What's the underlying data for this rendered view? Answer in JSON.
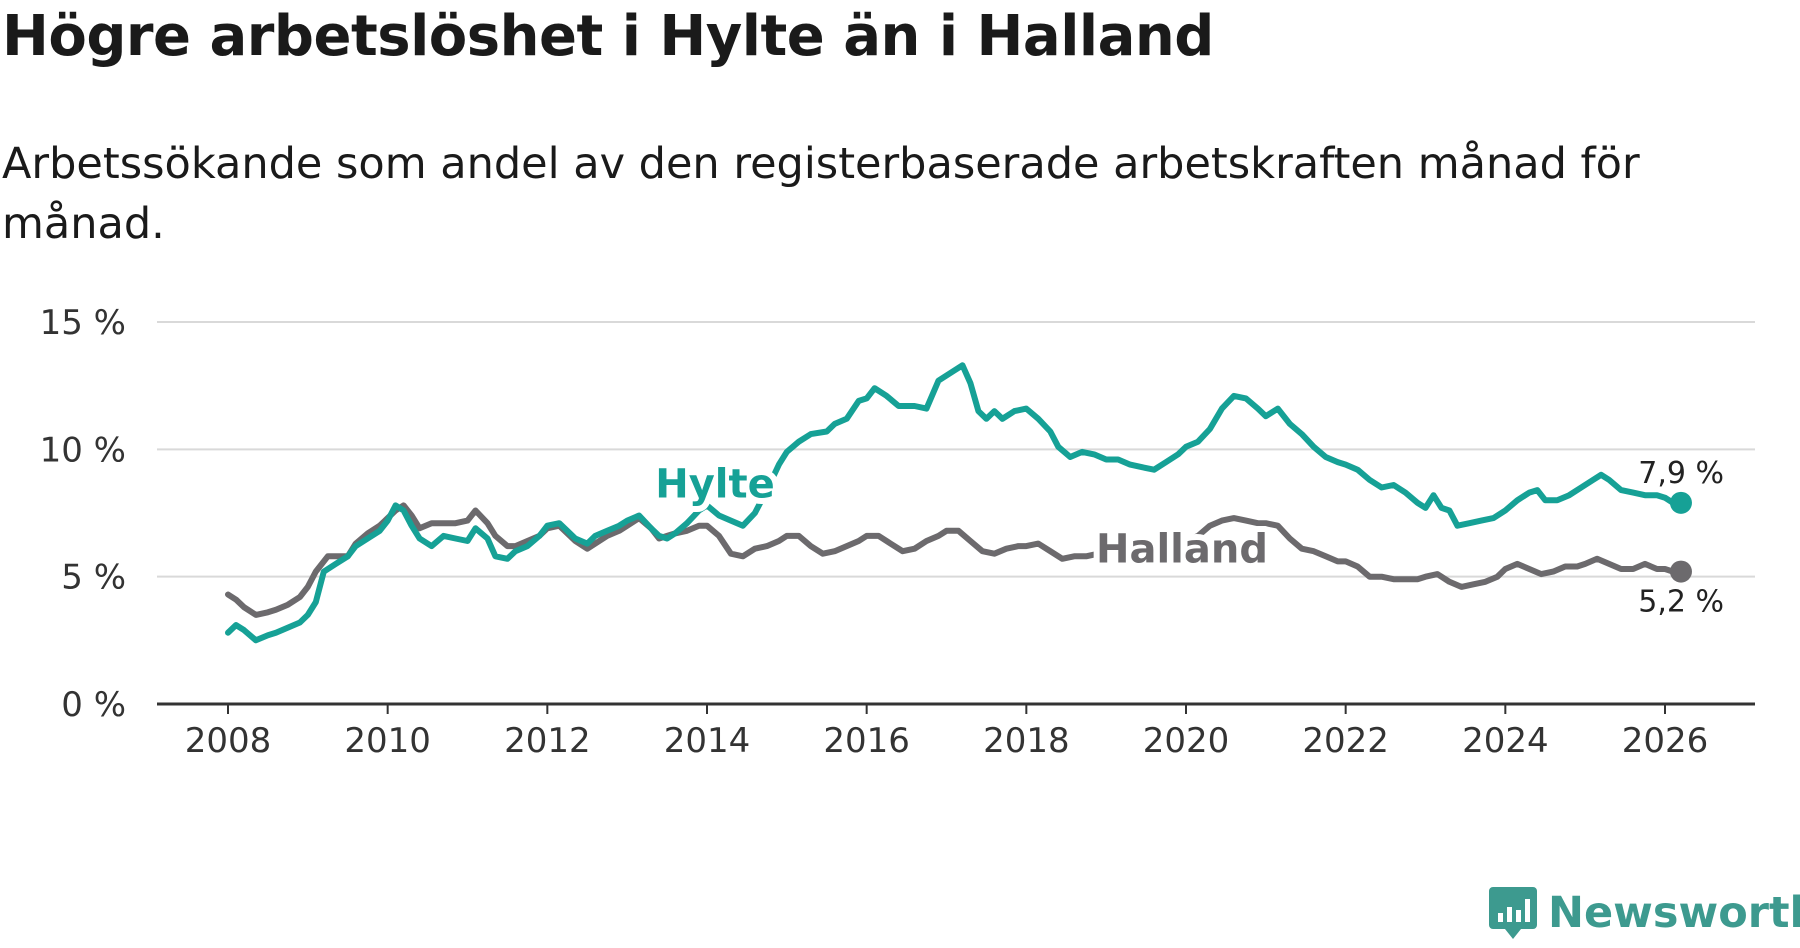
{
  "title": "Högre arbetslöshet i Hylte än i Halland",
  "subtitle": "Arbetssökande som andel av den registerbaserade arbetskraften månad för månad.",
  "brand": {
    "name": "Newsworthy",
    "color": "#3d9a8f",
    "icon": "bar-chart-badge-icon"
  },
  "chart_data": {
    "type": "line",
    "title": "Högre arbetslöshet i Hylte än i Halland",
    "xlabel": "",
    "ylabel": "",
    "xlim": [
      2007.2,
      2027.1
    ],
    "ylim": [
      0,
      15
    ],
    "grid": true,
    "y_ticks": [
      0,
      5,
      10,
      15
    ],
    "y_tick_labels": [
      "0 %",
      "5 %",
      "10 %",
      "15 %"
    ],
    "x_ticks": [
      2008,
      2010,
      2012,
      2014,
      2016,
      2018,
      2020,
      2022,
      2024,
      2026
    ],
    "x_tick_labels": [
      "2008",
      "2010",
      "2012",
      "2014",
      "2016",
      "2018",
      "2020",
      "2022",
      "2024",
      "2026"
    ],
    "series": [
      {
        "name": "Hylte",
        "color": "#16a196",
        "label": "Hylte",
        "end_label": "7,9 %",
        "points": [
          [
            2008.0,
            2.8
          ],
          [
            2008.1,
            3.1
          ],
          [
            2008.2,
            2.9
          ],
          [
            2008.35,
            2.5
          ],
          [
            2008.5,
            2.7
          ],
          [
            2008.6,
            2.8
          ],
          [
            2008.75,
            3.0
          ],
          [
            2008.9,
            3.2
          ],
          [
            2009.0,
            3.5
          ],
          [
            2009.1,
            4.0
          ],
          [
            2009.2,
            5.2
          ],
          [
            2009.35,
            5.5
          ],
          [
            2009.5,
            5.8
          ],
          [
            2009.6,
            6.2
          ],
          [
            2009.75,
            6.5
          ],
          [
            2009.9,
            6.8
          ],
          [
            2010.0,
            7.2
          ],
          [
            2010.1,
            7.8
          ],
          [
            2010.2,
            7.6
          ],
          [
            2010.3,
            7.0
          ],
          [
            2010.4,
            6.5
          ],
          [
            2010.55,
            6.2
          ],
          [
            2010.7,
            6.6
          ],
          [
            2010.85,
            6.5
          ],
          [
            2011.0,
            6.4
          ],
          [
            2011.1,
            6.9
          ],
          [
            2011.25,
            6.5
          ],
          [
            2011.35,
            5.8
          ],
          [
            2011.5,
            5.7
          ],
          [
            2011.6,
            6.0
          ],
          [
            2011.75,
            6.2
          ],
          [
            2011.9,
            6.6
          ],
          [
            2012.0,
            7.0
          ],
          [
            2012.15,
            7.1
          ],
          [
            2012.25,
            6.8
          ],
          [
            2012.35,
            6.5
          ],
          [
            2012.5,
            6.3
          ],
          [
            2012.6,
            6.6
          ],
          [
            2012.75,
            6.8
          ],
          [
            2012.9,
            7.0
          ],
          [
            2013.0,
            7.2
          ],
          [
            2013.15,
            7.4
          ],
          [
            2013.3,
            6.9
          ],
          [
            2013.4,
            6.6
          ],
          [
            2013.5,
            6.5
          ],
          [
            2013.6,
            6.7
          ],
          [
            2013.75,
            7.1
          ],
          [
            2013.9,
            7.6
          ],
          [
            2014.0,
            7.8
          ],
          [
            2014.15,
            7.4
          ],
          [
            2014.3,
            7.2
          ],
          [
            2014.45,
            7.0
          ],
          [
            2014.6,
            7.5
          ],
          [
            2014.75,
            8.4
          ],
          [
            2014.9,
            9.4
          ],
          [
            2015.0,
            9.9
          ],
          [
            2015.15,
            10.3
          ],
          [
            2015.3,
            10.6
          ],
          [
            2015.5,
            10.7
          ],
          [
            2015.6,
            11.0
          ],
          [
            2015.75,
            11.2
          ],
          [
            2015.9,
            11.9
          ],
          [
            2016.0,
            12.0
          ],
          [
            2016.1,
            12.4
          ],
          [
            2016.25,
            12.1
          ],
          [
            2016.4,
            11.7
          ],
          [
            2016.6,
            11.7
          ],
          [
            2016.75,
            11.6
          ],
          [
            2016.9,
            12.7
          ],
          [
            2017.0,
            12.9
          ],
          [
            2017.1,
            13.1
          ],
          [
            2017.2,
            13.3
          ],
          [
            2017.3,
            12.6
          ],
          [
            2017.4,
            11.5
          ],
          [
            2017.5,
            11.2
          ],
          [
            2017.6,
            11.5
          ],
          [
            2017.7,
            11.2
          ],
          [
            2017.85,
            11.5
          ],
          [
            2018.0,
            11.6
          ],
          [
            2018.15,
            11.2
          ],
          [
            2018.3,
            10.7
          ],
          [
            2018.4,
            10.1
          ],
          [
            2018.55,
            9.7
          ],
          [
            2018.7,
            9.9
          ],
          [
            2018.85,
            9.8
          ],
          [
            2019.0,
            9.6
          ],
          [
            2019.15,
            9.6
          ],
          [
            2019.3,
            9.4
          ],
          [
            2019.45,
            9.3
          ],
          [
            2019.6,
            9.2
          ],
          [
            2019.75,
            9.5
          ],
          [
            2019.9,
            9.8
          ],
          [
            2020.0,
            10.1
          ],
          [
            2020.15,
            10.3
          ],
          [
            2020.3,
            10.8
          ],
          [
            2020.45,
            11.6
          ],
          [
            2020.6,
            12.1
          ],
          [
            2020.75,
            12.0
          ],
          [
            2020.9,
            11.6
          ],
          [
            2021.0,
            11.3
          ],
          [
            2021.15,
            11.6
          ],
          [
            2021.3,
            11.0
          ],
          [
            2021.45,
            10.6
          ],
          [
            2021.6,
            10.1
          ],
          [
            2021.75,
            9.7
          ],
          [
            2021.9,
            9.5
          ],
          [
            2022.0,
            9.4
          ],
          [
            2022.15,
            9.2
          ],
          [
            2022.3,
            8.8
          ],
          [
            2022.45,
            8.5
          ],
          [
            2022.6,
            8.6
          ],
          [
            2022.75,
            8.3
          ],
          [
            2022.9,
            7.9
          ],
          [
            2023.0,
            7.7
          ],
          [
            2023.1,
            8.2
          ],
          [
            2023.2,
            7.7
          ],
          [
            2023.3,
            7.6
          ],
          [
            2023.4,
            7.0
          ],
          [
            2023.55,
            7.1
          ],
          [
            2023.7,
            7.2
          ],
          [
            2023.85,
            7.3
          ],
          [
            2024.0,
            7.6
          ],
          [
            2024.15,
            8.0
          ],
          [
            2024.3,
            8.3
          ],
          [
            2024.4,
            8.4
          ],
          [
            2024.5,
            8.0
          ],
          [
            2024.65,
            8.0
          ],
          [
            2024.8,
            8.2
          ],
          [
            2024.95,
            8.5
          ],
          [
            2025.1,
            8.8
          ],
          [
            2025.2,
            9.0
          ],
          [
            2025.3,
            8.8
          ],
          [
            2025.45,
            8.4
          ],
          [
            2025.6,
            8.3
          ],
          [
            2025.75,
            8.2
          ],
          [
            2025.9,
            8.2
          ],
          [
            2026.0,
            8.1
          ],
          [
            2026.1,
            7.9
          ],
          [
            2026.2,
            7.9
          ]
        ]
      },
      {
        "name": "Halland",
        "color": "#6c6a6d",
        "label": "Halland",
        "end_label": "5,2 %",
        "points": [
          [
            2008.0,
            4.3
          ],
          [
            2008.1,
            4.1
          ],
          [
            2008.2,
            3.8
          ],
          [
            2008.35,
            3.5
          ],
          [
            2008.5,
            3.6
          ],
          [
            2008.6,
            3.7
          ],
          [
            2008.75,
            3.9
          ],
          [
            2008.9,
            4.2
          ],
          [
            2009.0,
            4.6
          ],
          [
            2009.1,
            5.2
          ],
          [
            2009.25,
            5.8
          ],
          [
            2009.4,
            5.8
          ],
          [
            2009.5,
            5.8
          ],
          [
            2009.6,
            6.3
          ],
          [
            2009.75,
            6.7
          ],
          [
            2009.9,
            7.0
          ],
          [
            2010.0,
            7.3
          ],
          [
            2010.1,
            7.6
          ],
          [
            2010.2,
            7.8
          ],
          [
            2010.3,
            7.4
          ],
          [
            2010.4,
            6.9
          ],
          [
            2010.55,
            7.1
          ],
          [
            2010.7,
            7.1
          ],
          [
            2010.85,
            7.1
          ],
          [
            2011.0,
            7.2
          ],
          [
            2011.1,
            7.6
          ],
          [
            2011.25,
            7.1
          ],
          [
            2011.35,
            6.6
          ],
          [
            2011.5,
            6.2
          ],
          [
            2011.6,
            6.2
          ],
          [
            2011.75,
            6.4
          ],
          [
            2011.9,
            6.6
          ],
          [
            2012.0,
            6.9
          ],
          [
            2012.15,
            7.0
          ],
          [
            2012.25,
            6.7
          ],
          [
            2012.35,
            6.4
          ],
          [
            2012.5,
            6.1
          ],
          [
            2012.6,
            6.3
          ],
          [
            2012.75,
            6.6
          ],
          [
            2012.9,
            6.8
          ],
          [
            2013.0,
            7.0
          ],
          [
            2013.15,
            7.3
          ],
          [
            2013.3,
            6.9
          ],
          [
            2013.4,
            6.5
          ],
          [
            2013.5,
            6.6
          ],
          [
            2013.6,
            6.7
          ],
          [
            2013.75,
            6.8
          ],
          [
            2013.9,
            7.0
          ],
          [
            2014.0,
            7.0
          ],
          [
            2014.15,
            6.6
          ],
          [
            2014.3,
            5.9
          ],
          [
            2014.45,
            5.8
          ],
          [
            2014.6,
            6.1
          ],
          [
            2014.75,
            6.2
          ],
          [
            2014.9,
            6.4
          ],
          [
            2015.0,
            6.6
          ],
          [
            2015.15,
            6.6
          ],
          [
            2015.3,
            6.2
          ],
          [
            2015.45,
            5.9
          ],
          [
            2015.6,
            6.0
          ],
          [
            2015.75,
            6.2
          ],
          [
            2015.9,
            6.4
          ],
          [
            2016.0,
            6.6
          ],
          [
            2016.15,
            6.6
          ],
          [
            2016.3,
            6.3
          ],
          [
            2016.45,
            6.0
          ],
          [
            2016.6,
            6.1
          ],
          [
            2016.75,
            6.4
          ],
          [
            2016.9,
            6.6
          ],
          [
            2017.0,
            6.8
          ],
          [
            2017.15,
            6.8
          ],
          [
            2017.3,
            6.4
          ],
          [
            2017.45,
            6.0
          ],
          [
            2017.6,
            5.9
          ],
          [
            2017.75,
            6.1
          ],
          [
            2017.9,
            6.2
          ],
          [
            2018.0,
            6.2
          ],
          [
            2018.15,
            6.3
          ],
          [
            2018.3,
            6.0
          ],
          [
            2018.45,
            5.7
          ],
          [
            2018.6,
            5.8
          ],
          [
            2018.75,
            5.8
          ],
          [
            2018.9,
            5.9
          ],
          [
            2019.0,
            6.0
          ],
          [
            2019.2,
            6.1
          ],
          [
            2019.4,
            5.9
          ],
          [
            2019.6,
            5.8
          ],
          [
            2019.8,
            6.0
          ],
          [
            2020.0,
            6.4
          ],
          [
            2020.15,
            6.6
          ],
          [
            2020.3,
            7.0
          ],
          [
            2020.45,
            7.2
          ],
          [
            2020.6,
            7.3
          ],
          [
            2020.75,
            7.2
          ],
          [
            2020.9,
            7.1
          ],
          [
            2021.0,
            7.1
          ],
          [
            2021.15,
            7.0
          ],
          [
            2021.3,
            6.5
          ],
          [
            2021.45,
            6.1
          ],
          [
            2021.6,
            6.0
          ],
          [
            2021.75,
            5.8
          ],
          [
            2021.9,
            5.6
          ],
          [
            2022.0,
            5.6
          ],
          [
            2022.15,
            5.4
          ],
          [
            2022.3,
            5.0
          ],
          [
            2022.45,
            5.0
          ],
          [
            2022.6,
            4.9
          ],
          [
            2022.75,
            4.9
          ],
          [
            2022.9,
            4.9
          ],
          [
            2023.0,
            5.0
          ],
          [
            2023.15,
            5.1
          ],
          [
            2023.3,
            4.8
          ],
          [
            2023.45,
            4.6
          ],
          [
            2023.6,
            4.7
          ],
          [
            2023.75,
            4.8
          ],
          [
            2023.9,
            5.0
          ],
          [
            2024.0,
            5.3
          ],
          [
            2024.15,
            5.5
          ],
          [
            2024.3,
            5.3
          ],
          [
            2024.45,
            5.1
          ],
          [
            2024.6,
            5.2
          ],
          [
            2024.75,
            5.4
          ],
          [
            2024.9,
            5.4
          ],
          [
            2025.0,
            5.5
          ],
          [
            2025.15,
            5.7
          ],
          [
            2025.3,
            5.5
          ],
          [
            2025.45,
            5.3
          ],
          [
            2025.6,
            5.3
          ],
          [
            2025.75,
            5.5
          ],
          [
            2025.9,
            5.3
          ],
          [
            2026.0,
            5.3
          ],
          [
            2026.1,
            5.2
          ],
          [
            2026.2,
            5.2
          ]
        ]
      }
    ]
  }
}
